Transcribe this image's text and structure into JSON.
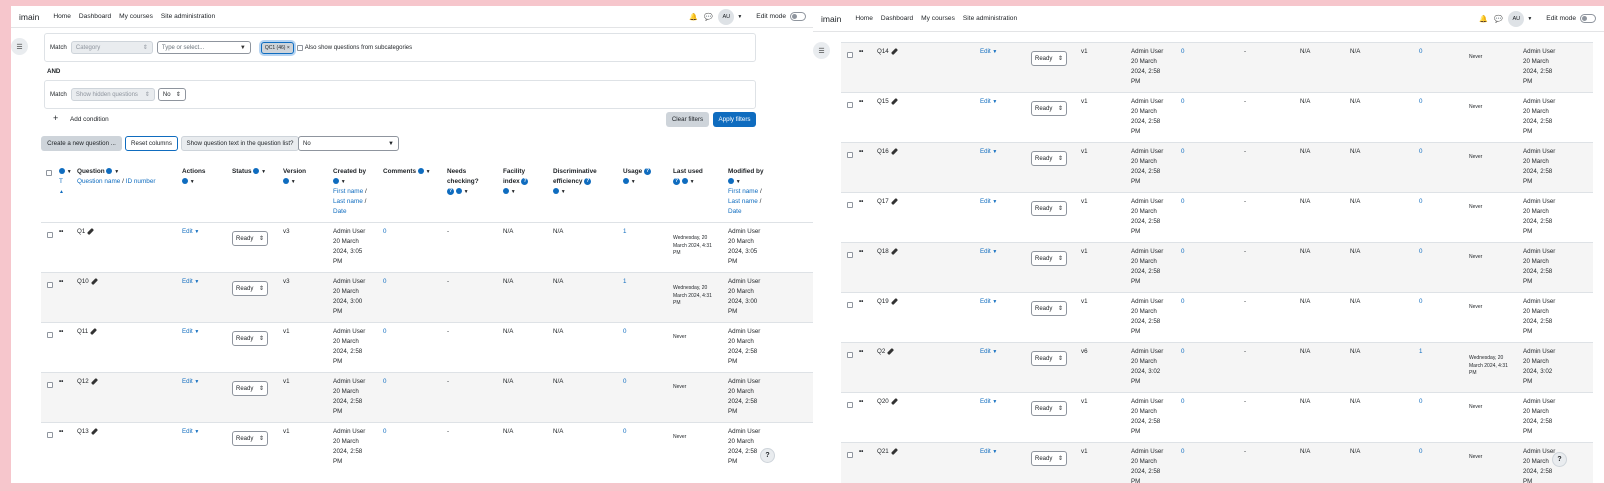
{
  "nav": {
    "brand": "imain",
    "links": [
      "Home",
      "Dashboard",
      "My courses",
      "Site administration"
    ],
    "avatar": "AU",
    "edit_mode": "Edit mode"
  },
  "filters": {
    "match": "Match",
    "category_placeholder": "Category",
    "type_placeholder": "Type or select...",
    "chip": "QC1 (46)",
    "chip_close": "×",
    "sub_label": "Also show questions from subcategories",
    "and": "AND",
    "hidden_placeholder": "Show hidden questions",
    "hidden_value": "No",
    "add_condition": "Add condition",
    "clear": "Clear filters",
    "apply": "Apply filters"
  },
  "toolbar": {
    "create": "Create a new question ...",
    "reset": "Reset columns",
    "show_text_label": "Show question text in the question list?",
    "show_text_value": "No"
  },
  "headers": {
    "t": "T",
    "question": "Question",
    "question_sub1": "Question name",
    "question_sep": "/",
    "question_sub2": "ID number",
    "actions": "Actions",
    "status": "Status",
    "version": "Version",
    "created_by": "Created by",
    "first_name": "First name",
    "last_name": "Last name",
    "date": "Date",
    "comments": "Comments",
    "needs1": "Needs",
    "needs2": "checking?",
    "facility1": "Facility",
    "facility2": "index",
    "disc1": "Discriminative",
    "disc2": "efficiency",
    "usage": "Usage",
    "last_used": "Last used",
    "modified_by": "Modified by"
  },
  "common": {
    "edit": "Edit",
    "ready": "Ready",
    "dash": "-",
    "na": "N/A",
    "never": "Never",
    "admin": "Admin User"
  },
  "left_rows": [
    {
      "name": "Q1",
      "version": "v3",
      "created": [
        "20 March",
        "2024, 3:05",
        "PM"
      ],
      "comments": "0",
      "usage": "1",
      "last_used": [
        "Wednesday, 20",
        "March 2024, 4:31",
        "PM"
      ],
      "modified": [
        "20 March",
        "2024, 3:05",
        "PM"
      ]
    },
    {
      "name": "Q10",
      "version": "v3",
      "created": [
        "20 March",
        "2024, 3:00",
        "PM"
      ],
      "comments": "0",
      "usage": "1",
      "last_used": [
        "Wednesday, 20",
        "March 2024, 4:31",
        "PM"
      ],
      "modified": [
        "20 March",
        "2024, 3:00",
        "PM"
      ]
    },
    {
      "name": "Q11",
      "version": "v1",
      "created": [
        "20 March",
        "2024, 2:58",
        "PM"
      ],
      "comments": "0",
      "usage": "0",
      "last_used": [
        "Never"
      ],
      "modified": [
        "20 March",
        "2024, 2:58",
        "PM"
      ]
    },
    {
      "name": "Q12",
      "version": "v1",
      "created": [
        "20 March",
        "2024, 2:58",
        "PM"
      ],
      "comments": "0",
      "usage": "0",
      "last_used": [
        "Never"
      ],
      "modified": [
        "20 March",
        "2024, 2:58",
        "PM"
      ]
    },
    {
      "name": "Q13",
      "version": "v1",
      "created": [
        "20 March",
        "2024, 2:58",
        "PM"
      ],
      "comments": "0",
      "usage": "0",
      "last_used": [
        "Never"
      ],
      "modified": [
        "20 March",
        "2024, 2:58",
        "PM"
      ]
    }
  ],
  "right_rows": [
    {
      "name": "Q14",
      "version": "v1",
      "created": [
        "20 March",
        "2024, 2:58",
        "PM"
      ],
      "comments": "0",
      "usage": "0",
      "last_used": [
        "Never"
      ],
      "modified": [
        "20 March",
        "2024, 2:58",
        "PM"
      ]
    },
    {
      "name": "Q15",
      "version": "v1",
      "created": [
        "20 March",
        "2024, 2:58",
        "PM"
      ],
      "comments": "0",
      "usage": "0",
      "last_used": [
        "Never"
      ],
      "modified": [
        "20 March",
        "2024, 2:58",
        "PM"
      ]
    },
    {
      "name": "Q16",
      "version": "v1",
      "created": [
        "20 March",
        "2024, 2:58",
        "PM"
      ],
      "comments": "0",
      "usage": "0",
      "last_used": [
        "Never"
      ],
      "modified": [
        "20 March",
        "2024, 2:58",
        "PM"
      ]
    },
    {
      "name": "Q17",
      "version": "v1",
      "created": [
        "20 March",
        "2024, 2:58",
        "PM"
      ],
      "comments": "0",
      "usage": "0",
      "last_used": [
        "Never"
      ],
      "modified": [
        "20 March",
        "2024, 2:58",
        "PM"
      ]
    },
    {
      "name": "Q18",
      "version": "v1",
      "created": [
        "20 March",
        "2024, 2:58",
        "PM"
      ],
      "comments": "0",
      "usage": "0",
      "last_used": [
        "Never"
      ],
      "modified": [
        "20 March",
        "2024, 2:58",
        "PM"
      ]
    },
    {
      "name": "Q19",
      "version": "v1",
      "created": [
        "20 March",
        "2024, 2:58",
        "PM"
      ],
      "comments": "0",
      "usage": "0",
      "last_used": [
        "Never"
      ],
      "modified": [
        "20 March",
        "2024, 2:58",
        "PM"
      ]
    },
    {
      "name": "Q2",
      "version": "v6",
      "created": [
        "20 March",
        "2024, 3:02",
        "PM"
      ],
      "comments": "0",
      "usage": "1",
      "last_used": [
        "Wednesday, 20",
        "March 2024, 4:31",
        "PM"
      ],
      "modified": [
        "20 March",
        "2024, 3:02",
        "PM"
      ]
    },
    {
      "name": "Q20",
      "version": "v1",
      "created": [
        "20 March",
        "2024, 2:58",
        "PM"
      ],
      "comments": "0",
      "usage": "0",
      "last_used": [
        "Never"
      ],
      "modified": [
        "20 March",
        "2024, 2:58",
        "PM"
      ]
    },
    {
      "name": "Q21",
      "version": "v1",
      "created": [
        "20 March",
        "2024, 2:58",
        "PM"
      ],
      "comments": "0",
      "usage": "0",
      "last_used": [
        "Never"
      ],
      "modified": [
        "20 March",
        "2024, 2:58",
        "PM"
      ]
    }
  ]
}
